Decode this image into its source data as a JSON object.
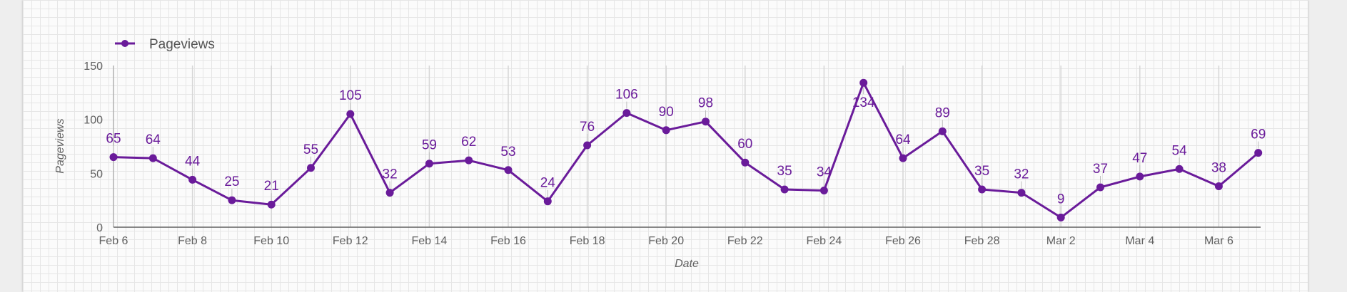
{
  "chart_data": {
    "type": "line",
    "legend": {
      "position": "top-left"
    },
    "xlabel": "Date",
    "ylabel": "Pageviews",
    "ylim": [
      0,
      150
    ],
    "yticks": [
      0,
      50,
      100,
      150
    ],
    "grid": true,
    "x": [
      "Feb 6",
      "Feb 7",
      "Feb 8",
      "Feb 9",
      "Feb 10",
      "Feb 11",
      "Feb 12",
      "Feb 13",
      "Feb 14",
      "Feb 15",
      "Feb 16",
      "Feb 17",
      "Feb 18",
      "Feb 19",
      "Feb 20",
      "Feb 21",
      "Feb 22",
      "Feb 23",
      "Feb 24",
      "Feb 25",
      "Feb 26",
      "Feb 27",
      "Feb 28",
      "Mar 1",
      "Mar 2",
      "Mar 3",
      "Mar 4",
      "Mar 5",
      "Mar 6",
      "Mar 7"
    ],
    "xtick_labels": [
      "Feb 6",
      "Feb 8",
      "Feb 10",
      "Feb 12",
      "Feb 14",
      "Feb 16",
      "Feb 18",
      "Feb 20",
      "Feb 22",
      "Feb 24",
      "Feb 26",
      "Feb 28",
      "Mar 2",
      "Mar 4",
      "Mar 6"
    ],
    "series": [
      {
        "name": "Pageviews",
        "color": "#6a1b9a",
        "values": [
          65,
          64,
          44,
          25,
          21,
          55,
          105,
          32,
          59,
          62,
          53,
          24,
          76,
          106,
          90,
          98,
          60,
          35,
          34,
          134,
          64,
          89,
          35,
          32,
          9,
          37,
          47,
          54,
          38,
          69
        ]
      }
    ]
  }
}
